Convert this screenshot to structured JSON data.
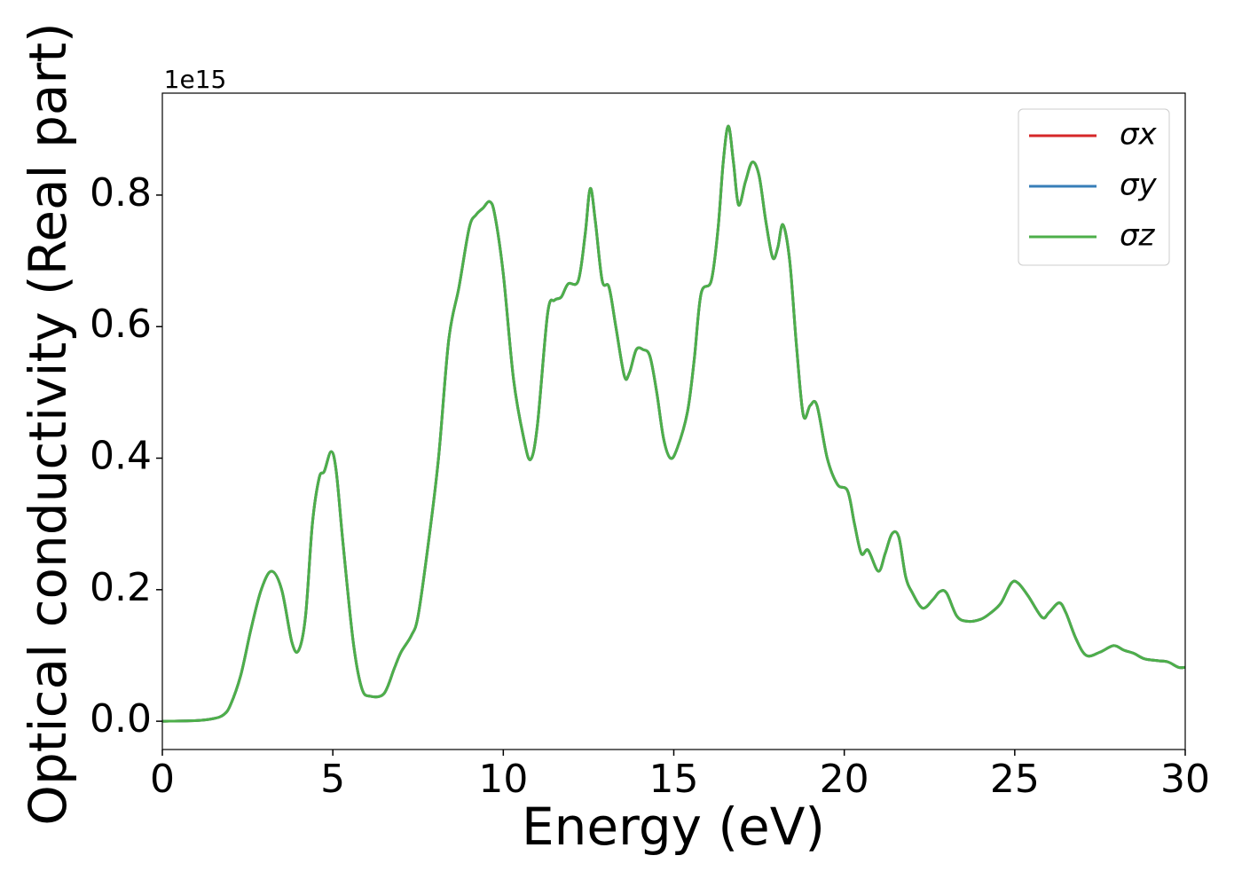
{
  "chart_data": {
    "type": "line",
    "xlabel": "Energy (eV)",
    "ylabel": "Optical conductivity (Real part)",
    "y_offset_label": "1e15",
    "x": [
      0,
      1,
      1.5,
      1.8,
      2,
      2.3,
      2.6,
      2.9,
      3.2,
      3.5,
      3.8,
      4.0,
      4.2,
      4.4,
      4.6,
      4.75,
      4.95,
      5.1,
      5.3,
      5.6,
      5.85,
      6.1,
      6.5,
      6.8,
      7.0,
      7.3,
      7.5,
      7.8,
      8.1,
      8.4,
      8.7,
      9.0,
      9.2,
      9.4,
      9.6,
      9.75,
      10.0,
      10.3,
      10.6,
      10.8,
      11.0,
      11.3,
      11.5,
      11.7,
      11.9,
      12.2,
      12.4,
      12.55,
      12.7,
      12.9,
      13.1,
      13.3,
      13.55,
      13.7,
      13.9,
      14.1,
      14.3,
      14.5,
      14.7,
      14.9,
      15.1,
      15.4,
      15.6,
      15.8,
      16.1,
      16.3,
      16.45,
      16.6,
      16.75,
      16.9,
      17.1,
      17.3,
      17.5,
      17.7,
      17.9,
      18.05,
      18.2,
      18.4,
      18.6,
      18.8,
      19.0,
      19.2,
      19.5,
      19.8,
      20.1,
      20.3,
      20.5,
      20.7,
      21.0,
      21.2,
      21.4,
      21.6,
      21.8,
      22.0,
      22.3,
      22.6,
      22.8,
      23.0,
      23.3,
      23.6,
      24.0,
      24.3,
      24.6,
      24.9,
      25.1,
      25.4,
      25.8,
      26.0,
      26.3,
      26.5,
      26.8,
      27.1,
      27.5,
      27.9,
      28.2,
      28.5,
      28.8,
      29.2,
      29.5,
      29.8,
      30
    ],
    "series": [
      {
        "name": "σx",
        "color": "#d62728",
        "values": [
          0,
          0.001,
          0.004,
          0.01,
          0.025,
          0.07,
          0.14,
          0.2,
          0.228,
          0.2,
          0.12,
          0.108,
          0.16,
          0.3,
          0.37,
          0.38,
          0.41,
          0.38,
          0.27,
          0.12,
          0.05,
          0.038,
          0.042,
          0.08,
          0.105,
          0.13,
          0.16,
          0.27,
          0.4,
          0.58,
          0.66,
          0.75,
          0.77,
          0.78,
          0.79,
          0.77,
          0.68,
          0.52,
          0.43,
          0.398,
          0.45,
          0.62,
          0.64,
          0.645,
          0.665,
          0.67,
          0.74,
          0.81,
          0.76,
          0.67,
          0.66,
          0.6,
          0.525,
          0.53,
          0.565,
          0.565,
          0.555,
          0.5,
          0.43,
          0.4,
          0.415,
          0.47,
          0.55,
          0.65,
          0.67,
          0.75,
          0.85,
          0.905,
          0.85,
          0.785,
          0.82,
          0.85,
          0.83,
          0.76,
          0.705,
          0.72,
          0.755,
          0.7,
          0.57,
          0.465,
          0.48,
          0.48,
          0.4,
          0.36,
          0.35,
          0.3,
          0.255,
          0.26,
          0.228,
          0.255,
          0.285,
          0.28,
          0.22,
          0.195,
          0.172,
          0.185,
          0.197,
          0.195,
          0.16,
          0.152,
          0.155,
          0.165,
          0.18,
          0.21,
          0.21,
          0.19,
          0.158,
          0.165,
          0.18,
          0.165,
          0.125,
          0.1,
          0.105,
          0.115,
          0.108,
          0.103,
          0.095,
          0.092,
          0.09,
          0.082,
          0.082
        ]
      },
      {
        "name": "σy",
        "color": "#377eb8",
        "values": [
          0,
          0.001,
          0.004,
          0.01,
          0.025,
          0.07,
          0.14,
          0.2,
          0.228,
          0.2,
          0.12,
          0.108,
          0.16,
          0.3,
          0.37,
          0.38,
          0.41,
          0.38,
          0.27,
          0.12,
          0.05,
          0.038,
          0.042,
          0.08,
          0.105,
          0.13,
          0.16,
          0.27,
          0.4,
          0.58,
          0.66,
          0.75,
          0.77,
          0.78,
          0.79,
          0.77,
          0.68,
          0.52,
          0.43,
          0.398,
          0.45,
          0.62,
          0.64,
          0.645,
          0.665,
          0.67,
          0.74,
          0.81,
          0.76,
          0.67,
          0.66,
          0.6,
          0.525,
          0.53,
          0.565,
          0.565,
          0.555,
          0.5,
          0.43,
          0.4,
          0.415,
          0.47,
          0.55,
          0.65,
          0.67,
          0.75,
          0.85,
          0.905,
          0.85,
          0.785,
          0.82,
          0.85,
          0.83,
          0.76,
          0.705,
          0.72,
          0.755,
          0.7,
          0.57,
          0.465,
          0.48,
          0.48,
          0.4,
          0.36,
          0.35,
          0.3,
          0.255,
          0.26,
          0.228,
          0.255,
          0.285,
          0.28,
          0.22,
          0.195,
          0.172,
          0.185,
          0.197,
          0.195,
          0.16,
          0.152,
          0.155,
          0.165,
          0.18,
          0.21,
          0.21,
          0.19,
          0.158,
          0.165,
          0.18,
          0.165,
          0.125,
          0.1,
          0.105,
          0.115,
          0.108,
          0.103,
          0.095,
          0.092,
          0.09,
          0.082,
          0.082
        ]
      },
      {
        "name": "σz",
        "color": "#4daf4a",
        "values": [
          0,
          0.001,
          0.004,
          0.01,
          0.025,
          0.07,
          0.14,
          0.2,
          0.228,
          0.2,
          0.12,
          0.108,
          0.16,
          0.3,
          0.37,
          0.38,
          0.41,
          0.38,
          0.27,
          0.12,
          0.05,
          0.038,
          0.042,
          0.08,
          0.105,
          0.13,
          0.16,
          0.27,
          0.4,
          0.58,
          0.66,
          0.75,
          0.77,
          0.78,
          0.79,
          0.77,
          0.68,
          0.52,
          0.43,
          0.398,
          0.45,
          0.62,
          0.64,
          0.645,
          0.665,
          0.67,
          0.74,
          0.81,
          0.76,
          0.67,
          0.66,
          0.6,
          0.525,
          0.53,
          0.565,
          0.565,
          0.555,
          0.5,
          0.43,
          0.4,
          0.415,
          0.47,
          0.55,
          0.65,
          0.67,
          0.75,
          0.85,
          0.905,
          0.85,
          0.785,
          0.82,
          0.85,
          0.83,
          0.76,
          0.705,
          0.72,
          0.755,
          0.7,
          0.57,
          0.465,
          0.48,
          0.48,
          0.4,
          0.36,
          0.35,
          0.3,
          0.255,
          0.26,
          0.228,
          0.255,
          0.285,
          0.28,
          0.22,
          0.195,
          0.172,
          0.185,
          0.197,
          0.195,
          0.16,
          0.152,
          0.155,
          0.165,
          0.18,
          0.21,
          0.21,
          0.19,
          0.158,
          0.165,
          0.18,
          0.165,
          0.125,
          0.1,
          0.105,
          0.115,
          0.108,
          0.103,
          0.095,
          0.092,
          0.09,
          0.082,
          0.082
        ]
      }
    ],
    "xlim": [
      0,
      30
    ],
    "xticks": [
      0,
      5,
      10,
      15,
      20,
      25,
      30
    ],
    "ylim": [
      -0.043,
      0.955
    ],
    "yticks": [
      {
        "value": 0,
        "label": "0.0"
      },
      0.2,
      0.4,
      0.6,
      0.8
    ],
    "grid": false,
    "legend": "upper right"
  }
}
